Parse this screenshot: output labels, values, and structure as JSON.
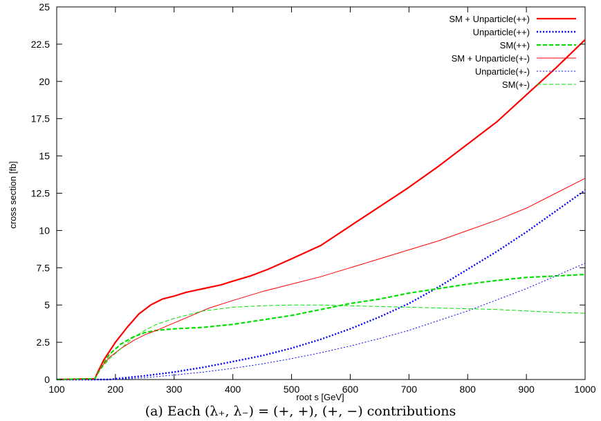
{
  "chart_data": {
    "type": "line",
    "title": "",
    "xlabel": "root s [GeV]",
    "ylabel": "cross section [fb]",
    "xlim": [
      100,
      1000
    ],
    "ylim": [
      0,
      25
    ],
    "xticks": [
      100,
      200,
      300,
      400,
      500,
      600,
      700,
      800,
      900,
      1000
    ],
    "yticks": [
      0,
      2.5,
      5,
      7.5,
      10,
      12.5,
      15,
      17.5,
      20,
      22.5,
      25
    ],
    "xtick_labels": [
      "100",
      "200",
      "300",
      "400",
      "500",
      "600",
      "700",
      "800",
      "900",
      "1000"
    ],
    "ytick_labels": [
      "0",
      "2.5",
      "5",
      "7.5",
      "10",
      "12.5",
      "15",
      "17.5",
      "20",
      "22.5",
      "25"
    ],
    "grid": false,
    "legend_position": "top-right",
    "series": [
      {
        "name": "SM + Unparticle(++)",
        "color": "#ff0000",
        "style": "solid-thick",
        "points": [
          [
            100,
            0
          ],
          [
            165,
            0.05
          ],
          [
            170,
            0.5
          ],
          [
            180,
            1.3
          ],
          [
            200,
            2.5
          ],
          [
            220,
            3.5
          ],
          [
            240,
            4.4
          ],
          [
            260,
            5.0
          ],
          [
            280,
            5.4
          ],
          [
            300,
            5.6
          ],
          [
            320,
            5.85
          ],
          [
            350,
            6.1
          ],
          [
            380,
            6.35
          ],
          [
            400,
            6.6
          ],
          [
            430,
            6.95
          ],
          [
            460,
            7.4
          ],
          [
            500,
            8.1
          ],
          [
            550,
            9.0
          ],
          [
            600,
            10.3
          ],
          [
            650,
            11.6
          ],
          [
            700,
            12.9
          ],
          [
            750,
            14.3
          ],
          [
            800,
            15.8
          ],
          [
            850,
            17.3
          ],
          [
            900,
            19.1
          ],
          [
            950,
            20.9
          ],
          [
            1000,
            22.8
          ]
        ]
      },
      {
        "name": "Unparticle(++)",
        "color": "#0000ff",
        "style": "dotted-thick",
        "points": [
          [
            100,
            0
          ],
          [
            190,
            0
          ],
          [
            200,
            0.05
          ],
          [
            250,
            0.25
          ],
          [
            300,
            0.5
          ],
          [
            350,
            0.82
          ],
          [
            400,
            1.2
          ],
          [
            450,
            1.6
          ],
          [
            500,
            2.1
          ],
          [
            550,
            2.7
          ],
          [
            600,
            3.4
          ],
          [
            650,
            4.2
          ],
          [
            700,
            5.1
          ],
          [
            750,
            6.2
          ],
          [
            800,
            7.4
          ],
          [
            850,
            8.6
          ],
          [
            900,
            9.9
          ],
          [
            950,
            11.3
          ],
          [
            1000,
            12.7
          ]
        ]
      },
      {
        "name": "SM(++)",
        "color": "#00e000",
        "style": "dashed-thick",
        "points": [
          [
            100,
            0
          ],
          [
            165,
            0.05
          ],
          [
            175,
            0.8
          ],
          [
            190,
            1.7
          ],
          [
            210,
            2.4
          ],
          [
            230,
            2.85
          ],
          [
            250,
            3.15
          ],
          [
            270,
            3.3
          ],
          [
            300,
            3.4
          ],
          [
            350,
            3.5
          ],
          [
            400,
            3.7
          ],
          [
            450,
            4.0
          ],
          [
            500,
            4.3
          ],
          [
            550,
            4.7
          ],
          [
            600,
            5.1
          ],
          [
            650,
            5.4
          ],
          [
            700,
            5.8
          ],
          [
            750,
            6.1
          ],
          [
            800,
            6.4
          ],
          [
            850,
            6.65
          ],
          [
            900,
            6.85
          ],
          [
            950,
            6.95
          ],
          [
            1000,
            7.05
          ]
        ]
      },
      {
        "name": "SM + Unparticle(+-)",
        "color": "#ff0000",
        "style": "solid-thin",
        "points": [
          [
            100,
            0
          ],
          [
            165,
            0.05
          ],
          [
            175,
            0.8
          ],
          [
            190,
            1.5
          ],
          [
            210,
            2.1
          ],
          [
            230,
            2.6
          ],
          [
            250,
            3.0
          ],
          [
            270,
            3.3
          ],
          [
            300,
            3.8
          ],
          [
            330,
            4.3
          ],
          [
            360,
            4.8
          ],
          [
            400,
            5.3
          ],
          [
            450,
            5.9
          ],
          [
            500,
            6.4
          ],
          [
            550,
            6.9
          ],
          [
            600,
            7.5
          ],
          [
            650,
            8.1
          ],
          [
            700,
            8.7
          ],
          [
            750,
            9.3
          ],
          [
            800,
            10.0
          ],
          [
            850,
            10.7
          ],
          [
            900,
            11.5
          ],
          [
            950,
            12.5
          ],
          [
            1000,
            13.5
          ]
        ]
      },
      {
        "name": "Unparticle(+-)",
        "color": "#0000ff",
        "style": "dotted-thin",
        "points": [
          [
            100,
            0
          ],
          [
            200,
            0
          ],
          [
            250,
            0.12
          ],
          [
            300,
            0.3
          ],
          [
            350,
            0.5
          ],
          [
            400,
            0.75
          ],
          [
            450,
            1.05
          ],
          [
            500,
            1.4
          ],
          [
            550,
            1.8
          ],
          [
            600,
            2.25
          ],
          [
            650,
            2.75
          ],
          [
            700,
            3.3
          ],
          [
            750,
            3.95
          ],
          [
            800,
            4.6
          ],
          [
            850,
            5.35
          ],
          [
            900,
            6.1
          ],
          [
            950,
            6.95
          ],
          [
            1000,
            7.8
          ]
        ]
      },
      {
        "name": "SM(+-)",
        "color": "#00e000",
        "style": "dashed-thin",
        "points": [
          [
            100,
            0
          ],
          [
            165,
            0.05
          ],
          [
            175,
            0.7
          ],
          [
            190,
            1.4
          ],
          [
            210,
            2.1
          ],
          [
            230,
            2.8
          ],
          [
            250,
            3.3
          ],
          [
            270,
            3.7
          ],
          [
            300,
            4.1
          ],
          [
            350,
            4.6
          ],
          [
            400,
            4.85
          ],
          [
            450,
            4.95
          ],
          [
            500,
            5.0
          ],
          [
            550,
            5.0
          ],
          [
            600,
            4.95
          ],
          [
            650,
            4.9
          ],
          [
            700,
            4.85
          ],
          [
            750,
            4.8
          ],
          [
            800,
            4.75
          ],
          [
            850,
            4.7
          ],
          [
            900,
            4.6
          ],
          [
            950,
            4.5
          ],
          [
            1000,
            4.45
          ]
        ]
      }
    ]
  },
  "caption": "(a) Each (λ₊, λ₋) = (+, +), (+, −) contributions"
}
